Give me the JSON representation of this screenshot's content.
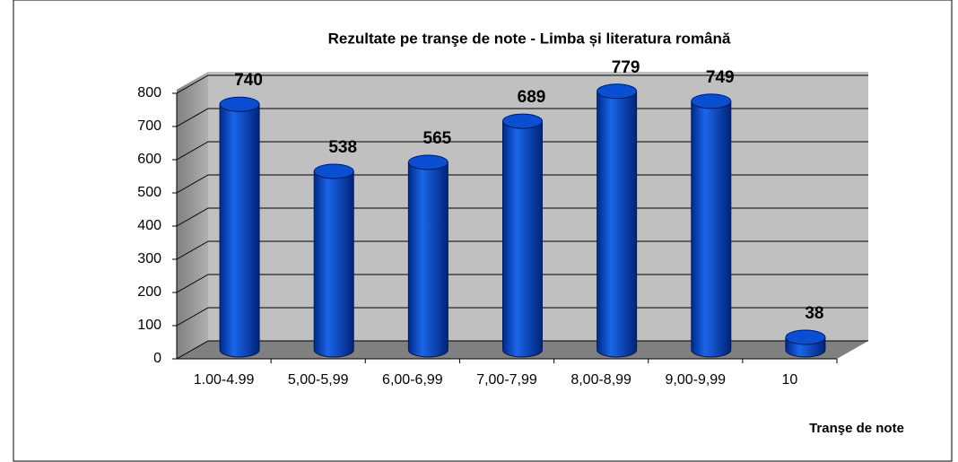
{
  "chart_data": {
    "type": "bar",
    "title": "Rezultate pe tranşe de note - Limba și literatura română",
    "x_label": "Tranşe de note",
    "categories": [
      "1.00-4.99",
      "5,00-5,99",
      "6,00-6,99",
      "7,00-7,99",
      "8,00-8,99",
      "9,00-9,99",
      "10"
    ],
    "values": [
      740,
      538,
      565,
      689,
      779,
      749,
      38
    ],
    "color": "#0a4fd1",
    "ylim": [
      0,
      800
    ],
    "yticks": [
      0,
      100,
      200,
      300,
      400,
      500,
      600,
      700,
      800
    ],
    "grid": true
  }
}
